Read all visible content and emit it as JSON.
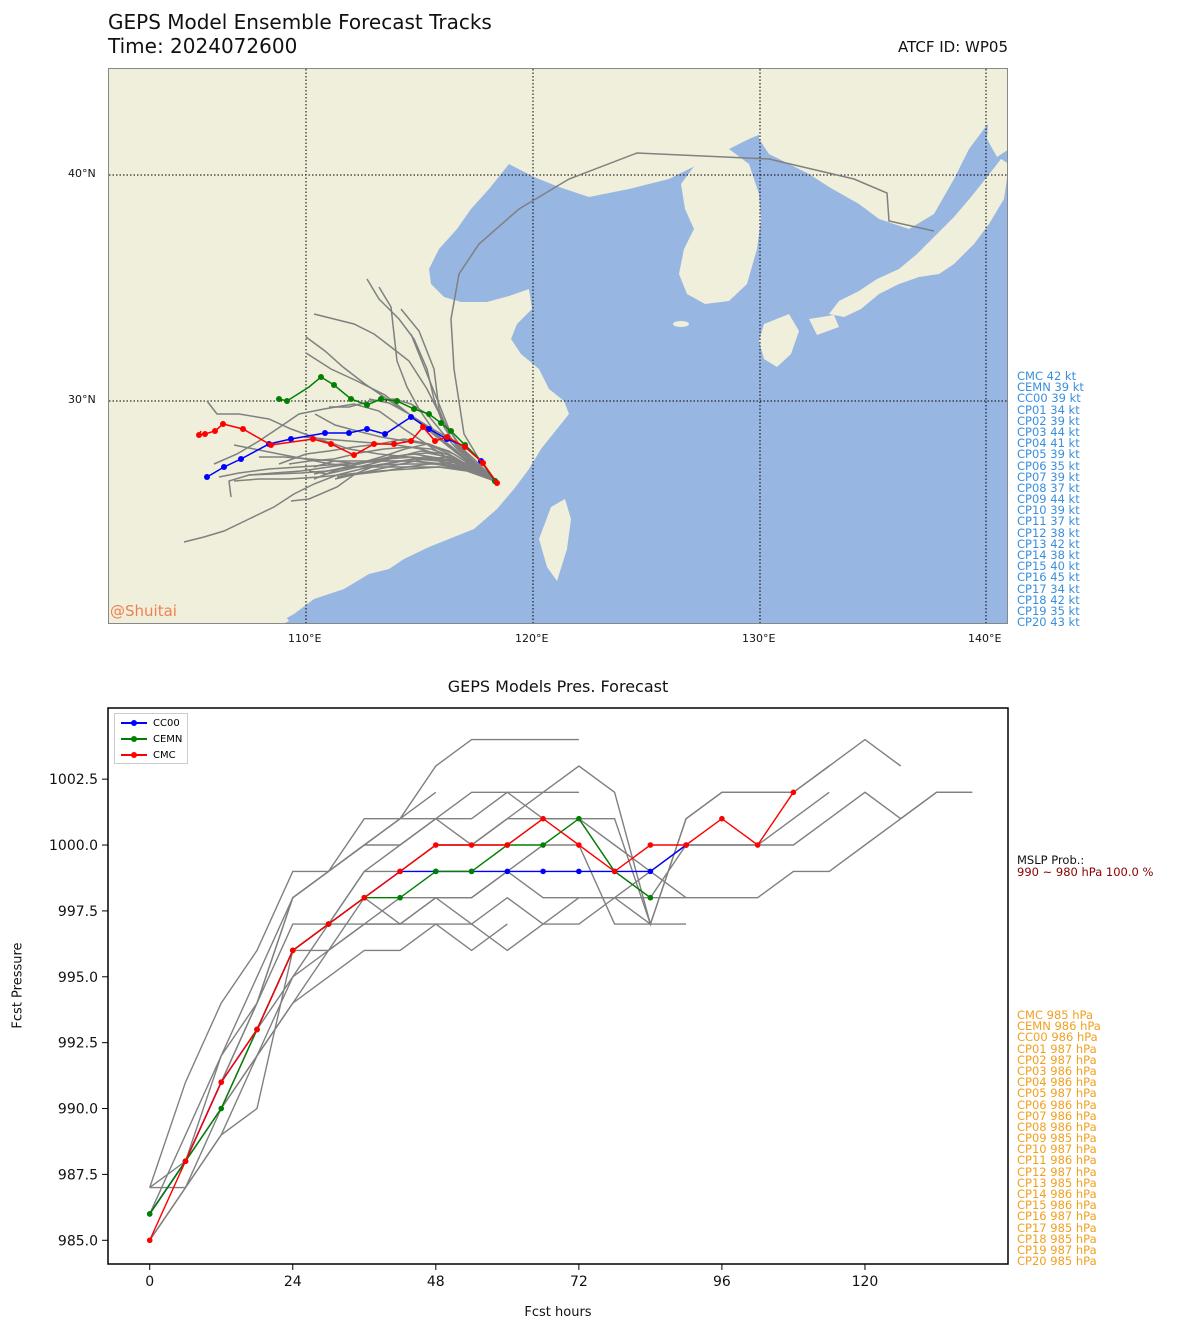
{
  "header": {
    "title": "GEPS Model Ensemble Forecast Tracks",
    "time": "Time: 2024072600",
    "atcf": "ATCF ID: WP05"
  },
  "map": {
    "lat_labels": [
      "40°N",
      "30°N"
    ],
    "lon_labels": [
      "110°E",
      "120°E",
      "130°E",
      "140°E"
    ],
    "credit": "@Shuitai",
    "colors": {
      "land": "#efefdb",
      "sea": "#98b6e2",
      "track": "#808080"
    }
  },
  "wind_list": [
    "CMC 42 kt",
    "CEMN 39 kt",
    "CC00 39 kt",
    "CP01 34 kt",
    "CP02 39 kt",
    "CP03 44 kt",
    "CP04 41 kt",
    "CP05 39 kt",
    "CP06 35 kt",
    "CP07 39 kt",
    "CP08 37 kt",
    "CP09 44 kt",
    "CP10 39 kt",
    "CP11 37 kt",
    "CP12 38 kt",
    "CP13 42 kt",
    "CP14 38 kt",
    "CP15 40 kt",
    "CP16 45 kt",
    "CP17 34 kt",
    "CP18 42 kt",
    "CP19 35 kt",
    "CP20 43 kt"
  ],
  "pressure_chart": {
    "title": "GEPS Models Pres. Forecast",
    "xlabel": "Fcst hours",
    "ylabel": "Fcst Pressure",
    "mslp_title": "MSLP Prob.:",
    "mslp_value": "990 ~ 980 hPa 100.0 %"
  },
  "pres_list": [
    "CMC 985 hPa",
    "CEMN 986 hPa",
    "CC00 986 hPa",
    "CP01 987 hPa",
    "CP02 987 hPa",
    "CP03 986 hPa",
    "CP04 986 hPa",
    "CP05 987 hPa",
    "CP06 986 hPa",
    "CP07 986 hPa",
    "CP08 986 hPa",
    "CP09 985 hPa",
    "CP10 987 hPa",
    "CP11 986 hPa",
    "CP12 987 hPa",
    "CP13 985 hPa",
    "CP14 986 hPa",
    "CP15 986 hPa",
    "CP16 987 hPa",
    "CP17 985 hPa",
    "CP18 985 hPa",
    "CP19 987 hPa",
    "CP20 985 hPa"
  ],
  "chart_data": {
    "type": "line",
    "title": "GEPS Models Pres. Forecast",
    "xlabel": "Fcst hours",
    "ylabel": "Fcst Pressure",
    "xlim": [
      -7,
      144
    ],
    "ylim": [
      984.1,
      1005.2
    ],
    "xticks": [
      0,
      24,
      48,
      72,
      96,
      120
    ],
    "yticks": [
      985.0,
      987.5,
      990.0,
      992.5,
      995.0,
      997.5,
      1000.0,
      1002.5
    ],
    "legend_position": "top-left",
    "series": [
      {
        "name": "CC00",
        "color": "#0000ff",
        "marker": true,
        "x": [
          0,
          6,
          12,
          18,
          24,
          30,
          36,
          42,
          48,
          54,
          60,
          66,
          72,
          78,
          84,
          90
        ],
        "y": [
          986,
          988,
          991,
          993,
          996,
          997,
          998,
          999,
          999,
          999,
          999,
          999,
          999,
          999,
          999,
          1000
        ]
      },
      {
        "name": "CEMN",
        "color": "#008000",
        "marker": true,
        "x": [
          0,
          6,
          12,
          18,
          24,
          30,
          36,
          42,
          48,
          54,
          60,
          66,
          72,
          78,
          84
        ],
        "y": [
          986,
          988,
          990,
          993,
          996,
          997,
          998,
          998,
          999,
          999,
          1000,
          1000,
          1001,
          999,
          998
        ]
      },
      {
        "name": "CMC",
        "color": "#ff0000",
        "marker": true,
        "x": [
          0,
          6,
          12,
          18,
          24,
          30,
          36,
          42,
          48,
          54,
          60,
          66,
          72,
          78,
          84,
          90,
          96,
          102,
          108
        ],
        "y": [
          985,
          988,
          991,
          993,
          996,
          997,
          998,
          999,
          1000,
          1000,
          1000,
          1001,
          1000,
          999,
          1000,
          1000,
          1001,
          1000,
          1002
        ]
      },
      {
        "color": "#808080",
        "marker": false,
        "x": [
          0,
          6,
          12,
          18,
          24,
          30,
          36,
          42,
          48,
          54,
          60,
          66,
          72
        ],
        "y": [
          987,
          991,
          994,
          996,
          999,
          999,
          1001,
          1001,
          1001,
          1002,
          1002,
          1002,
          1002
        ]
      },
      {
        "color": "#808080",
        "marker": false,
        "x": [
          0,
          6,
          12,
          18,
          24,
          30,
          36,
          42,
          48,
          54,
          60,
          66,
          72
        ],
        "y": [
          986,
          989,
          992,
          994,
          998,
          999,
          1000,
          1001,
          1003,
          1004,
          1004,
          1004,
          1004
        ]
      },
      {
        "color": "#808080",
        "marker": false,
        "x": [
          0,
          6,
          12,
          18,
          24,
          30,
          36,
          42,
          48,
          54,
          60,
          66,
          72,
          78,
          84,
          90,
          96,
          102,
          108,
          114
        ],
        "y": [
          986,
          988,
          992,
          995,
          998,
          999,
          1000,
          1000,
          1001,
          1001,
          1002,
          1001,
          1001,
          1001,
          997,
          1001,
          1002,
          1002,
          1002,
          1003
        ]
      },
      {
        "color": "#808080",
        "marker": false,
        "x": [
          0,
          6,
          12,
          18,
          24,
          30,
          36,
          42,
          48,
          54,
          60,
          66,
          72,
          78,
          84,
          90,
          96,
          102,
          108,
          114,
          120,
          126
        ],
        "y": [
          986,
          988,
          991,
          994,
          997,
          997,
          999,
          1000,
          1001,
          1000,
          1001,
          1002,
          1003,
          1002,
          997,
          1001,
          1002,
          1002,
          1002,
          1003,
          1004,
          1003
        ]
      },
      {
        "color": "#808080",
        "marker": false,
        "x": [
          0,
          6,
          12,
          18,
          24,
          30,
          36,
          42,
          48
        ],
        "y": [
          987,
          988,
          991,
          994,
          998,
          999,
          1000,
          1001,
          1002
        ]
      },
      {
        "color": "#808080",
        "marker": false,
        "x": [
          0,
          6,
          12,
          18,
          24,
          30,
          36,
          42,
          48,
          54,
          60,
          66,
          72,
          78,
          84,
          90,
          96,
          102,
          108,
          114
        ],
        "y": [
          986,
          988,
          990,
          993,
          996,
          997,
          999,
          999,
          1000,
          1000,
          1000,
          1001,
          1001,
          1000,
          999,
          1000,
          1000,
          1000,
          1001,
          1002
        ]
      },
      {
        "color": "#808080",
        "marker": false,
        "x": [
          0,
          6,
          12,
          18,
          24,
          30,
          36,
          42,
          48,
          54,
          60,
          66,
          72,
          78,
          84,
          90,
          96,
          102,
          108,
          114,
          120,
          126,
          132,
          138
        ],
        "y": [
          985,
          987,
          990,
          992,
          995,
          996,
          998,
          999,
          1000,
          1000,
          1001,
          1001,
          1001,
          999,
          998,
          1000,
          1000,
          1000,
          1000,
          1001,
          1002,
          1001,
          1002,
          1002
        ]
      },
      {
        "color": "#808080",
        "marker": false,
        "x": [
          0,
          6,
          12,
          18,
          24,
          30,
          36,
          42,
          48,
          54,
          60,
          66,
          72,
          78,
          84
        ],
        "y": [
          986,
          988,
          991,
          993,
          995,
          997,
          997,
          998,
          998,
          998,
          999,
          1000,
          1000,
          997,
          997
        ]
      },
      {
        "color": "#808080",
        "marker": false,
        "x": [
          0,
          6,
          12,
          18,
          24,
          30,
          36,
          42,
          48,
          54,
          60,
          66,
          72,
          78,
          84,
          90,
          96,
          102,
          108,
          114,
          120,
          126,
          132,
          138
        ],
        "y": [
          985,
          987,
          989,
          992,
          994,
          996,
          997,
          997,
          998,
          998,
          999,
          998,
          998,
          998,
          998,
          998,
          998,
          998,
          999,
          999,
          1000,
          1001,
          1002,
          1002
        ]
      },
      {
        "color": "#808080",
        "marker": false,
        "x": [
          0,
          6,
          12,
          18,
          24,
          30,
          36,
          42,
          48,
          54,
          60
        ],
        "y": [
          986,
          988,
          990,
          993,
          996,
          997,
          998,
          997,
          997,
          996,
          997
        ]
      },
      {
        "color": "#808080",
        "marker": false,
        "x": [
          0,
          6,
          12,
          18,
          24,
          30,
          36,
          42,
          48,
          54,
          60,
          66,
          72,
          78,
          84,
          90
        ],
        "y": [
          986,
          988,
          990,
          992,
          994,
          995,
          996,
          996,
          997,
          997,
          998,
          997,
          997,
          998,
          997,
          997
        ]
      },
      {
        "color": "#808080",
        "marker": false,
        "x": [
          0,
          6,
          12,
          18,
          24,
          30,
          36,
          42,
          48,
          54,
          60,
          66,
          72,
          78,
          84,
          90
        ],
        "y": [
          987,
          987,
          989,
          990,
          996,
          996,
          997,
          997,
          998,
          997,
          996,
          997,
          998,
          998,
          999,
          998
        ]
      }
    ]
  }
}
